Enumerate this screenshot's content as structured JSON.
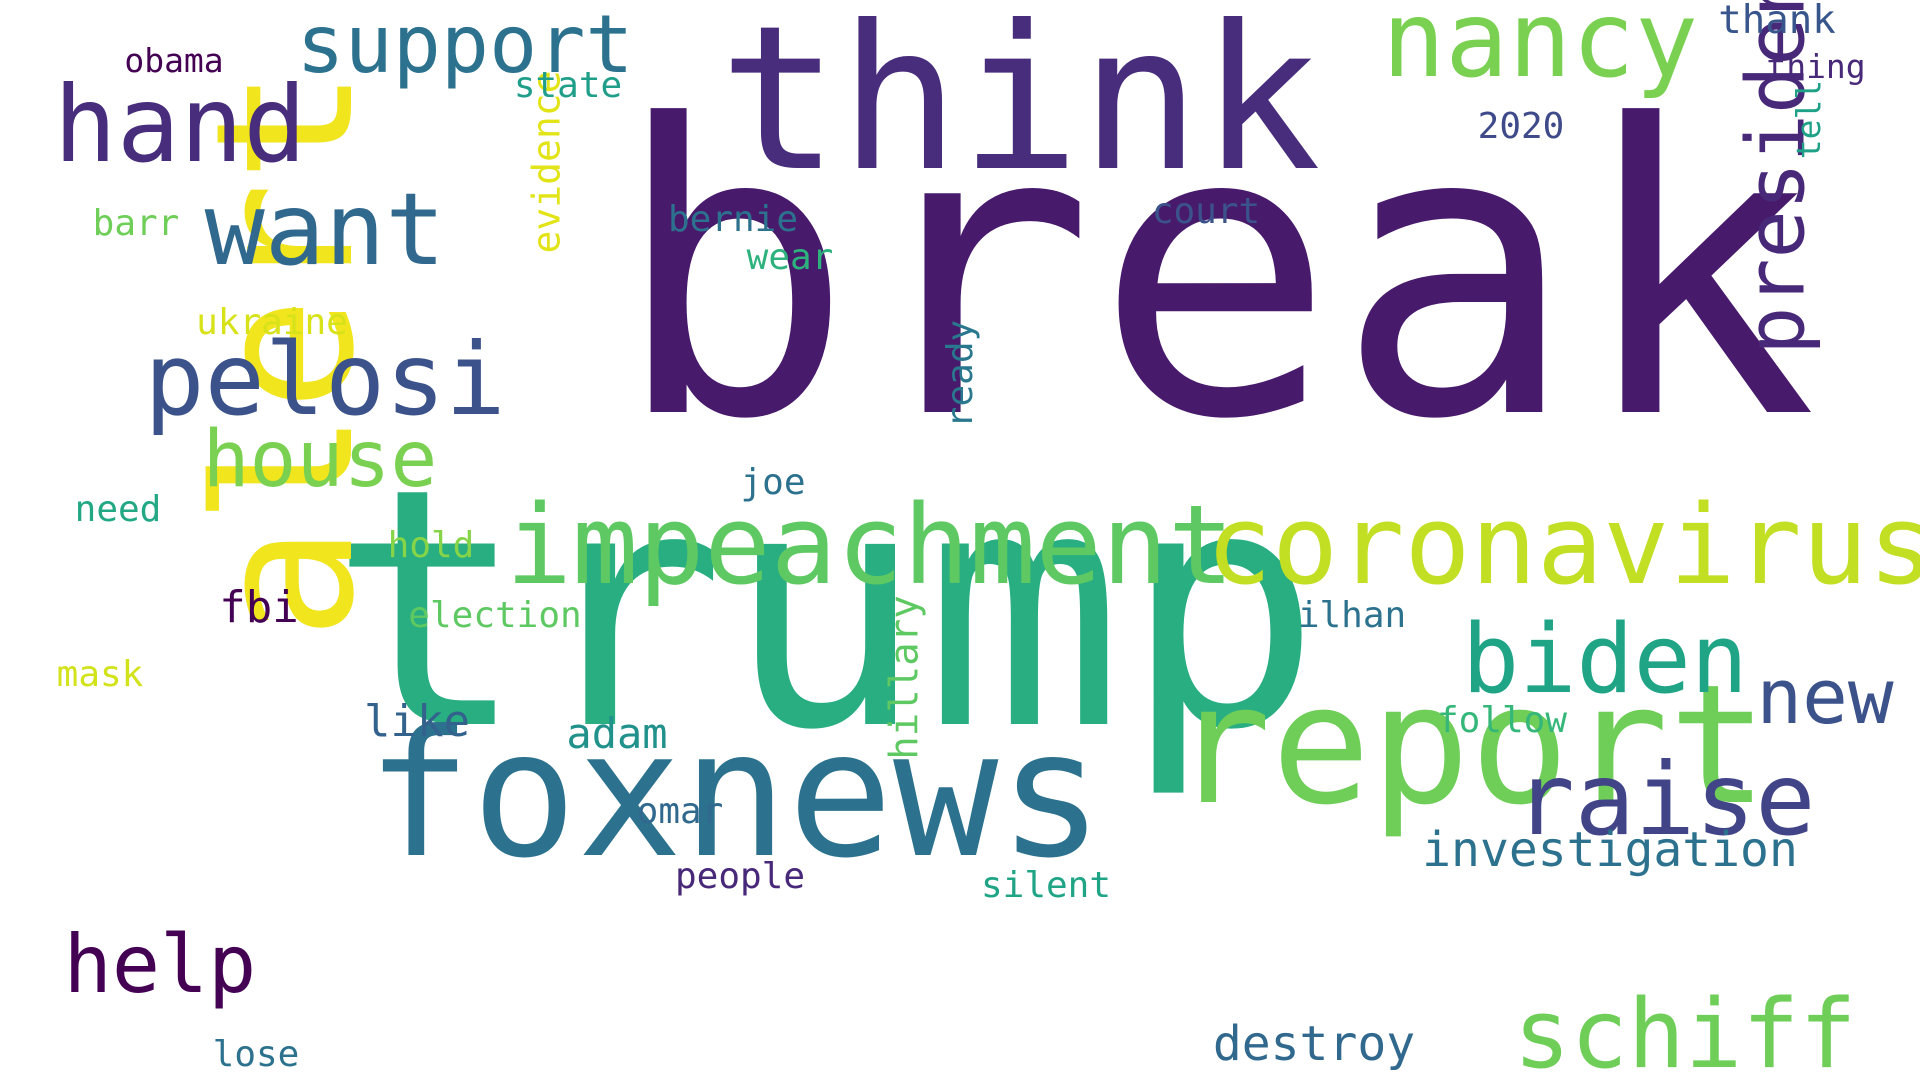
{
  "palette": {
    "background": "#ffffff",
    "dark_purple": "#440154",
    "purple": "#472d7b",
    "indigo": "#3b528b",
    "blue": "#2c728e",
    "teal": "#21918c",
    "green": "#28ae80",
    "light_green": "#5ec962",
    "lime": "#addc30",
    "yellow": "#fde725"
  },
  "words": [
    {
      "key": "break",
      "text": "break",
      "weight": 100,
      "color": "#481a6c",
      "orientation": "horizontal"
    },
    {
      "key": "trump",
      "text": "trump",
      "weight": 87,
      "color": "#28ae80",
      "orientation": "horizontal"
    },
    {
      "key": "think",
      "text": "think",
      "weight": 55,
      "color": "#472d7b",
      "orientation": "horizontal"
    },
    {
      "key": "alert",
      "text": "alert",
      "weight": 53,
      "color": "#f1e51d",
      "orientation": "vertical"
    },
    {
      "key": "foxnews",
      "text": "foxnews",
      "weight": 50,
      "color": "#2c728e",
      "orientation": "horizontal"
    },
    {
      "key": "report",
      "text": "report",
      "weight": 45,
      "color": "#6ece58",
      "orientation": "horizontal"
    },
    {
      "key": "impeachment",
      "text": "impeachment",
      "weight": 30,
      "color": "#5ec962",
      "orientation": "horizontal"
    },
    {
      "key": "coronavirus",
      "text": "coronavirus",
      "weight": 30,
      "color": "#c2df23",
      "orientation": "horizontal"
    },
    {
      "key": "nancy",
      "text": "nancy",
      "weight": 27,
      "color": "#7ad151",
      "orientation": "horizontal"
    },
    {
      "key": "hand",
      "text": "hand",
      "weight": 27,
      "color": "#472d7b",
      "orientation": "horizontal"
    },
    {
      "key": "raise",
      "text": "raise",
      "weight": 26,
      "color": "#414487",
      "orientation": "horizontal"
    },
    {
      "key": "pelosi",
      "text": "pelosi",
      "weight": 25,
      "color": "#3b528b",
      "orientation": "horizontal"
    },
    {
      "key": "want",
      "text": "want",
      "weight": 25,
      "color": "#31688e",
      "orientation": "horizontal"
    },
    {
      "key": "biden",
      "text": "biden",
      "weight": 25,
      "color": "#20a486",
      "orientation": "horizontal"
    },
    {
      "key": "schiff",
      "text": "schiff",
      "weight": 25,
      "color": "#6ece58",
      "orientation": "horizontal"
    },
    {
      "key": "president",
      "text": "president",
      "weight": 21,
      "color": "#482878",
      "orientation": "vertical"
    },
    {
      "key": "support",
      "text": "support",
      "weight": 21,
      "color": "#2c728e",
      "orientation": "horizontal"
    },
    {
      "key": "help",
      "text": "help",
      "weight": 21,
      "color": "#440154",
      "orientation": "horizontal"
    },
    {
      "key": "house",
      "text": "house",
      "weight": 20,
      "color": "#7ad151",
      "orientation": "horizontal"
    },
    {
      "key": "new",
      "text": "new",
      "weight": 20,
      "color": "#3b528b",
      "orientation": "horizontal"
    },
    {
      "key": "investigation",
      "text": "investigation",
      "weight": 12,
      "color": "#2c728e",
      "orientation": "horizontal"
    },
    {
      "key": "destroy",
      "text": "destroy",
      "weight": 12,
      "color": "#31688e",
      "orientation": "horizontal"
    },
    {
      "key": "like",
      "text": "like",
      "weight": 11,
      "color": "#33638d",
      "orientation": "horizontal"
    },
    {
      "key": "fbi",
      "text": "fbi",
      "weight": 11,
      "color": "#440154",
      "orientation": "horizontal"
    },
    {
      "key": "adam",
      "text": "adam",
      "weight": 11,
      "color": "#21918c",
      "orientation": "horizontal"
    },
    {
      "key": "hillary",
      "text": "hillary",
      "weight": 10,
      "color": "#5ec962",
      "orientation": "vertical"
    },
    {
      "key": "evidence",
      "text": "evidence",
      "weight": 10,
      "color": "#e2e418",
      "orientation": "vertical"
    },
    {
      "key": "thank",
      "text": "thank",
      "weight": 10,
      "color": "#39568c",
      "orientation": "horizontal"
    },
    {
      "key": "ready",
      "text": "ready",
      "weight": 9,
      "color": "#2a788e",
      "orientation": "vertical"
    },
    {
      "key": "barr",
      "text": "barr",
      "weight": 9,
      "color": "#6ece58",
      "orientation": "horizontal"
    },
    {
      "key": "state",
      "text": "state",
      "weight": 9,
      "color": "#1f9e89",
      "orientation": "horizontal"
    },
    {
      "key": "ukraine",
      "text": "ukraine",
      "weight": 9,
      "color": "#d8e219",
      "orientation": "horizontal"
    },
    {
      "key": "bernie",
      "text": "bernie",
      "weight": 9,
      "color": "#2c728e",
      "orientation": "horizontal"
    },
    {
      "key": "court",
      "text": "court",
      "weight": 9,
      "color": "#3b528b",
      "orientation": "horizontal"
    },
    {
      "key": "2020",
      "text": "2020",
      "weight": 9,
      "color": "#3e4a89",
      "orientation": "horizontal"
    },
    {
      "key": "follow",
      "text": "follow",
      "weight": 9,
      "color": "#35b779",
      "orientation": "horizontal"
    },
    {
      "key": "ilhan",
      "text": "ilhan",
      "weight": 9,
      "color": "#2c728e",
      "orientation": "horizontal"
    },
    {
      "key": "election",
      "text": "election",
      "weight": 9,
      "color": "#5ec962",
      "orientation": "horizontal"
    },
    {
      "key": "need",
      "text": "need",
      "weight": 9,
      "color": "#22a884",
      "orientation": "horizontal"
    },
    {
      "key": "hold",
      "text": "hold",
      "weight": 9,
      "color": "#86d549",
      "orientation": "horizontal"
    },
    {
      "key": "mask",
      "text": "mask",
      "weight": 9,
      "color": "#d2e21b",
      "orientation": "horizontal"
    },
    {
      "key": "joe",
      "text": "joe",
      "weight": 9,
      "color": "#2c728e",
      "orientation": "horizontal"
    },
    {
      "key": "omar",
      "text": "omar",
      "weight": 9,
      "color": "#31688e",
      "orientation": "horizontal"
    },
    {
      "key": "people",
      "text": "people",
      "weight": 9,
      "color": "#482878",
      "orientation": "horizontal"
    },
    {
      "key": "silent",
      "text": "silent",
      "weight": 9,
      "color": "#20a486",
      "orientation": "horizontal"
    },
    {
      "key": "wear",
      "text": "wear",
      "weight": 9,
      "color": "#2db27d",
      "orientation": "horizontal"
    },
    {
      "key": "lose",
      "text": "lose",
      "weight": 9,
      "color": "#2c728e",
      "orientation": "horizontal"
    },
    {
      "key": "obama",
      "text": "obama",
      "weight": 8,
      "color": "#440154",
      "orientation": "horizontal"
    },
    {
      "key": "thing",
      "text": "thing",
      "weight": 8,
      "color": "#482878",
      "orientation": "horizontal"
    },
    {
      "key": "tell",
      "text": "tell",
      "weight": 8,
      "color": "#1fa188",
      "orientation": "vertical"
    }
  ]
}
